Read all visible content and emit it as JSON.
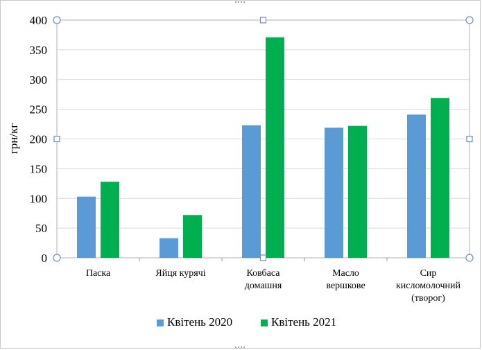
{
  "chart_data": {
    "type": "bar",
    "ylabel": "грн/кг",
    "xlabel": "",
    "ylim": [
      0,
      400
    ],
    "yticks": [
      0,
      50,
      100,
      150,
      200,
      250,
      300,
      350,
      400
    ],
    "grid": true,
    "legend_position": "bottom",
    "categories": [
      [
        "Паска"
      ],
      [
        "Яйця курячі"
      ],
      [
        "Ковбаса",
        "домашня"
      ],
      [
        "Масло",
        "вершкове"
      ],
      [
        "Сир",
        "кисломолочний",
        "(творог)"
      ]
    ],
    "series": [
      {
        "name": "Квітень 2020",
        "color": "#5b9bd5",
        "values": [
          103,
          33,
          223,
          219,
          241
        ]
      },
      {
        "name": "Квітень 2021",
        "color": "#00b050",
        "values": [
          128,
          72,
          371,
          222,
          269
        ]
      }
    ]
  }
}
